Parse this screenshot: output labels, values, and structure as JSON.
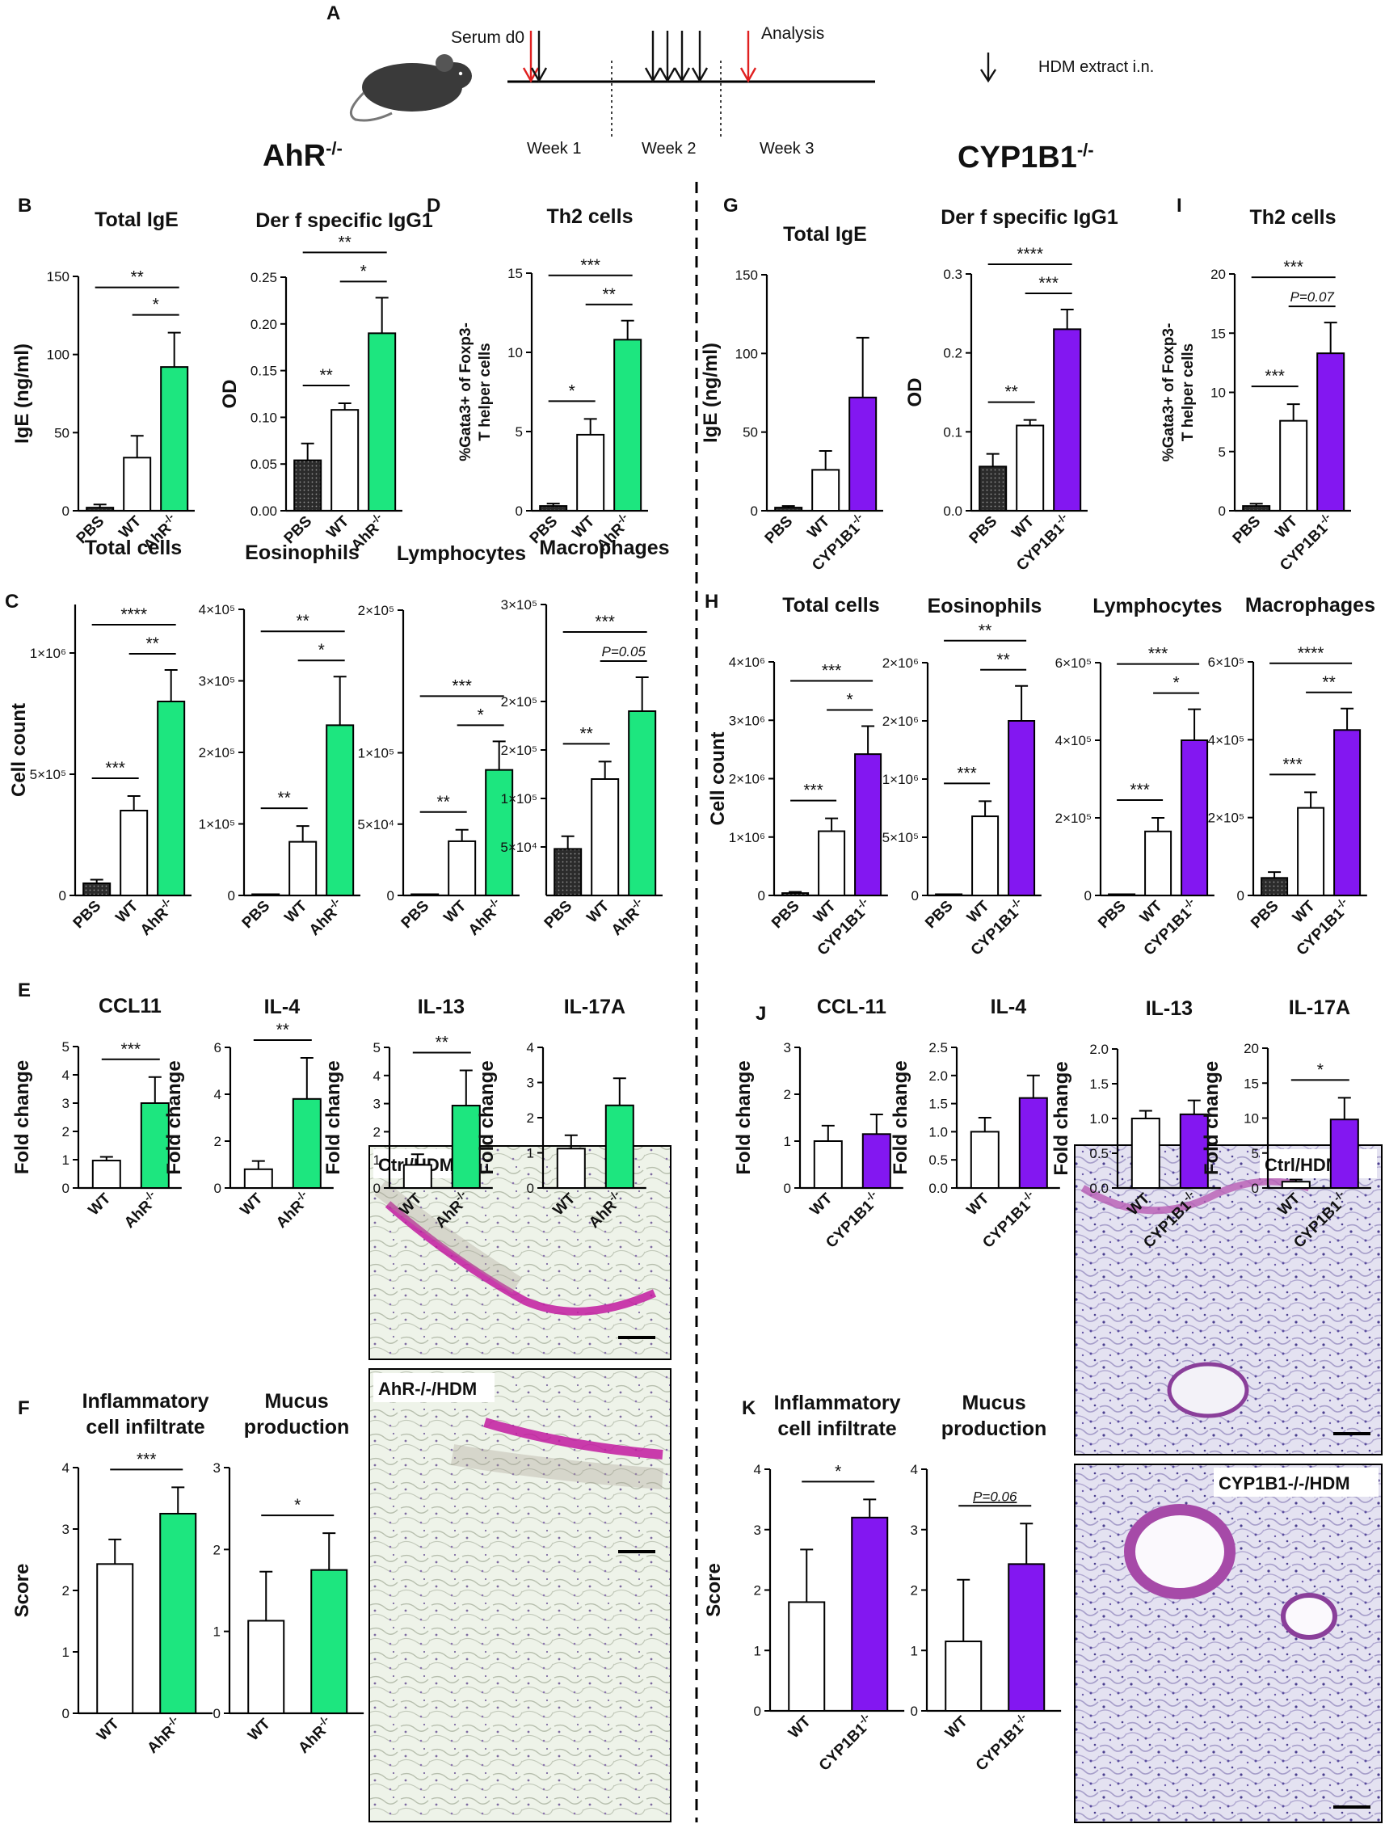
{
  "colors": {
    "green": "#1de67f",
    "purple": "#8317f1",
    "pbs": "#2b2b2b",
    "wt": "#ffffff",
    "line": "#000000"
  },
  "timeline": {
    "letter": "A",
    "serum": "Serum d0",
    "analysis": "Analysis",
    "weeks": [
      "Week 1",
      "Week 2",
      "Week 3"
    ],
    "legend": "HDM extract i.n."
  },
  "headers": {
    "left_base": "AhR",
    "left_sup": "-/-",
    "right_base": "CYP1B1",
    "right_sup": "-/-"
  },
  "histology": {
    "left": [
      "Ctrl/HDM",
      "AhR-/-/HDM"
    ],
    "right": [
      "Ctrl/HDM",
      "CYP1B1-/-/HDM"
    ]
  },
  "chart_data": [
    {
      "id": "B1",
      "letter": "B",
      "type": "bar",
      "title": "Total IgE",
      "ylabel": "IgE (ng/ml)",
      "ylim": [
        0,
        150
      ],
      "ticks": [
        "0",
        "50",
        "100",
        "150"
      ],
      "categories": [
        "PBS",
        "WT",
        "AhR-/-"
      ],
      "values": [
        2,
        34,
        92
      ],
      "errors": [
        2,
        14,
        22
      ],
      "sig": [
        {
          "from": 0,
          "to": 2,
          "label": "**"
        },
        {
          "from": 1,
          "to": 2,
          "label": "*"
        }
      ]
    },
    {
      "id": "B2",
      "type": "bar",
      "title": "Der f specific IgG1",
      "ylabel": "OD",
      "ylim": [
        0,
        0.25
      ],
      "ticks": [
        "0.00",
        "0.05",
        "0.10",
        "0.15",
        "0.20",
        "0.25"
      ],
      "categories": [
        "PBS",
        "WT",
        "AhR-/-"
      ],
      "values": [
        0.054,
        0.108,
        0.19
      ],
      "errors": [
        0.018,
        0.007,
        0.038
      ],
      "sig": [
        {
          "from": 0,
          "to": 1,
          "label": "**"
        },
        {
          "from": 0,
          "to": 2,
          "label": "**"
        },
        {
          "from": 1,
          "to": 2,
          "label": "*"
        }
      ]
    },
    {
      "id": "D",
      "letter": "D",
      "type": "bar",
      "title": "Th2 cells",
      "ylabel": "%Gata3+ of Foxp3- T helper cells",
      "ylim": [
        0,
        15
      ],
      "ticks": [
        "0",
        "5",
        "10",
        "15"
      ],
      "categories": [
        "PBS",
        "WT",
        "AhR-/-"
      ],
      "values": [
        0.3,
        4.8,
        10.8
      ],
      "errors": [
        0.15,
        1.0,
        1.2
      ],
      "sig": [
        {
          "from": 0,
          "to": 1,
          "label": "*"
        },
        {
          "from": 0,
          "to": 2,
          "label": "***"
        },
        {
          "from": 1,
          "to": 2,
          "label": "**"
        }
      ]
    },
    {
      "id": "G1",
      "letter": "G",
      "type": "bar",
      "title": "Total  IgE",
      "ylabel": "IgE (ng/ml)",
      "ylim": [
        0,
        150
      ],
      "ticks": [
        "0",
        "50",
        "100",
        "150"
      ],
      "categories": [
        "PBS",
        "WT",
        "CYP1B1-/-"
      ],
      "values": [
        2,
        26,
        72
      ],
      "errors": [
        1,
        12,
        38
      ],
      "sig": []
    },
    {
      "id": "G2",
      "type": "bar",
      "title": "Der f specific IgG1",
      "ylabel": "OD",
      "ylim": [
        0,
        0.3
      ],
      "ticks": [
        "0.0",
        "0.1",
        "0.2",
        "0.3"
      ],
      "categories": [
        "PBS",
        "WT",
        "CYP1B1-/-"
      ],
      "values": [
        0.056,
        0.108,
        0.23
      ],
      "errors": [
        0.016,
        0.007,
        0.025
      ],
      "sig": [
        {
          "from": 0,
          "to": 1,
          "label": "**"
        },
        {
          "from": 1,
          "to": 2,
          "label": "***"
        },
        {
          "from": 0,
          "to": 2,
          "label": "****"
        }
      ]
    },
    {
      "id": "I",
      "letter": "I",
      "type": "bar",
      "title": "Th2 cells",
      "ylabel": "%Gata3+ of Foxp3- T helper cells",
      "ylim": [
        0,
        20
      ],
      "ticks": [
        "0",
        "5",
        "10",
        "15",
        "20"
      ],
      "categories": [
        "PBS",
        "WT",
        "CYP1B1-/-"
      ],
      "values": [
        0.4,
        7.6,
        13.3
      ],
      "errors": [
        0.2,
        1.4,
        2.6
      ],
      "sig": [
        {
          "from": 0,
          "to": 1,
          "label": "***"
        },
        {
          "from": 0,
          "to": 2,
          "label": "***"
        },
        {
          "from": 1,
          "to": 2,
          "label": "P=0.07",
          "italic": true
        }
      ]
    },
    {
      "id": "C1",
      "letter": "C",
      "type": "bar",
      "title": "Total cells",
      "ylabel": "Cell count",
      "ylim": [
        0,
        1200000
      ],
      "ticks": [
        "0",
        "5×10⁵",
        "1×10⁶"
      ],
      "tickvals": [
        0,
        500000,
        1000000
      ],
      "categories": [
        "PBS",
        "WT",
        "AhR-/-"
      ],
      "values": [
        50000,
        350000,
        800000
      ],
      "errors": [
        15000,
        60000,
        130000
      ],
      "sig": [
        {
          "from": 0,
          "to": 1,
          "label": "***"
        },
        {
          "from": 0,
          "to": 2,
          "label": "****"
        },
        {
          "from": 1,
          "to": 2,
          "label": "**"
        }
      ]
    },
    {
      "id": "C2",
      "type": "bar",
      "title": "Eosinophils",
      "ylabel": "",
      "ylim": [
        0,
        400000
      ],
      "ticks": [
        "0",
        "1×10⁵",
        "2×10⁵",
        "3×10⁵",
        "4×10⁵"
      ],
      "categories": [
        "PBS",
        "WT",
        "AhR-/-"
      ],
      "values": [
        500,
        75000,
        238000
      ],
      "errors": [
        300,
        22000,
        68000
      ],
      "sig": [
        {
          "from": 0,
          "to": 1,
          "label": "**"
        },
        {
          "from": 0,
          "to": 2,
          "label": "**"
        },
        {
          "from": 1,
          "to": 2,
          "label": "*"
        }
      ]
    },
    {
      "id": "C3",
      "type": "bar",
      "title": "Lymphocytes",
      "ylabel": "",
      "ylim": [
        0,
        200000
      ],
      "ticks": [
        "0",
        "5×10⁴",
        "1×10⁵",
        "2×10⁵"
      ],
      "tickvals": [
        0,
        50000,
        100000,
        200000
      ],
      "categories": [
        "PBS",
        "WT",
        "AhR-/-"
      ],
      "values": [
        500,
        38000,
        88000
      ],
      "errors": [
        300,
        8000,
        20000
      ],
      "sig": [
        {
          "from": 0,
          "to": 1,
          "label": "**"
        },
        {
          "from": 0,
          "to": 2,
          "label": "***"
        },
        {
          "from": 1,
          "to": 2,
          "label": "*"
        }
      ]
    },
    {
      "id": "C4",
      "type": "bar",
      "title": "Macrophages",
      "ylabel": "",
      "ylim": [
        0,
        300000
      ],
      "ticks": [
        "5×10⁴",
        "1×10⁵",
        "2×10⁵",
        "2×10⁵",
        "3×10⁵"
      ],
      "tickvals": [
        50000,
        100000,
        150000,
        200000,
        300000
      ],
      "categories": [
        "PBS",
        "WT",
        "AhR-/-"
      ],
      "values": [
        48000,
        120000,
        190000
      ],
      "errors": [
        13000,
        18000,
        35000
      ],
      "sig": [
        {
          "from": 0,
          "to": 1,
          "label": "**"
        },
        {
          "from": 0,
          "to": 2,
          "label": "***"
        },
        {
          "from": 1,
          "to": 2,
          "label": "P=0.05",
          "italic": true
        }
      ]
    },
    {
      "id": "H1",
      "letter": "H",
      "type": "bar",
      "title": "Total cells",
      "ylabel": "Cell count",
      "ylim": [
        0,
        4000000
      ],
      "ticks": [
        "0",
        "1×10⁶",
        "2×10⁶",
        "3×10⁶",
        "4×10⁶"
      ],
      "categories": [
        "PBS",
        "WT",
        "CYP1B1-/-"
      ],
      "values": [
        40000,
        1100000,
        2420000
      ],
      "errors": [
        20000,
        220000,
        480000
      ],
      "sig": [
        {
          "from": 0,
          "to": 1,
          "label": "***"
        },
        {
          "from": 0,
          "to": 2,
          "label": "***"
        },
        {
          "from": 1,
          "to": 2,
          "label": "*"
        }
      ]
    },
    {
      "id": "H2",
      "type": "bar",
      "title": "Eosinophils",
      "ylabel": "",
      "ylim": [
        0,
        2000000
      ],
      "ticks": [
        "0",
        "5×10⁵",
        "1×10⁶",
        "2×10⁶",
        "2×10⁶"
      ],
      "tickvals": [
        0,
        500000,
        1000000,
        1500000,
        2000000
      ],
      "categories": [
        "PBS",
        "WT",
        "CYP1B1-/-"
      ],
      "values": [
        2000,
        680000,
        1500000
      ],
      "errors": [
        1000,
        130000,
        300000
      ],
      "sig": [
        {
          "from": 0,
          "to": 1,
          "label": "***"
        },
        {
          "from": 0,
          "to": 2,
          "label": "**"
        },
        {
          "from": 1,
          "to": 2,
          "label": "**"
        }
      ]
    },
    {
      "id": "H3",
      "type": "bar",
      "title": "Lymphocytes",
      "ylabel": "",
      "ylim": [
        0,
        600000
      ],
      "ticks": [
        "0",
        "2×10⁵",
        "4×10⁵",
        "6×10⁵"
      ],
      "categories": [
        "PBS",
        "WT",
        "CYP1B1-/-"
      ],
      "values": [
        1000,
        165000,
        400000
      ],
      "errors": [
        500,
        35000,
        80000
      ],
      "sig": [
        {
          "from": 0,
          "to": 1,
          "label": "***"
        },
        {
          "from": 0,
          "to": 2,
          "label": "***"
        },
        {
          "from": 1,
          "to": 2,
          "label": "*"
        }
      ]
    },
    {
      "id": "H4",
      "type": "bar",
      "title": "Macrophages",
      "ylabel": "",
      "ylim": [
        0,
        600000
      ],
      "ticks": [
        "0",
        "2×10⁵",
        "4×10⁵",
        "6×10⁵"
      ],
      "categories": [
        "PBS",
        "WT",
        "CYP1B1-/-"
      ],
      "values": [
        45000,
        225000,
        425000
      ],
      "errors": [
        15000,
        40000,
        55000
      ],
      "sig": [
        {
          "from": 0,
          "to": 1,
          "label": "***"
        },
        {
          "from": 0,
          "to": 2,
          "label": "****"
        },
        {
          "from": 1,
          "to": 2,
          "label": "**"
        }
      ]
    },
    {
      "id": "E1",
      "letter": "E",
      "type": "bar",
      "title": "CCL11",
      "ylabel": "Fold change",
      "ylim": [
        0,
        5
      ],
      "ticks": [
        "0",
        "1",
        "2",
        "3",
        "4",
        "5"
      ],
      "categories": [
        "WT",
        "AhR-/-"
      ],
      "values": [
        0.97,
        3.0
      ],
      "errors": [
        0.13,
        0.92
      ],
      "sig": [
        {
          "from": 0,
          "to": 1,
          "label": "***"
        }
      ]
    },
    {
      "id": "E2",
      "type": "bar",
      "title": "IL-4",
      "ylabel": "Fold change",
      "ylim": [
        0,
        6
      ],
      "ticks": [
        "0",
        "2",
        "4",
        "6"
      ],
      "categories": [
        "WT",
        "AhR-/-"
      ],
      "values": [
        0.8,
        3.8
      ],
      "errors": [
        0.35,
        1.75
      ],
      "sig": [
        {
          "from": 0,
          "to": 1,
          "label": "**"
        }
      ]
    },
    {
      "id": "E3",
      "type": "bar",
      "title": "IL-13",
      "ylabel": "Fold change",
      "ylim": [
        0,
        5
      ],
      "ticks": [
        "0",
        "1",
        "2",
        "3",
        "4",
        "5"
      ],
      "categories": [
        "WT",
        "AhR-/-"
      ],
      "values": [
        0.82,
        2.93
      ],
      "errors": [
        0.38,
        1.25
      ],
      "sig": [
        {
          "from": 0,
          "to": 1,
          "label": "**"
        }
      ]
    },
    {
      "id": "E4",
      "type": "bar",
      "title": "IL-17A",
      "ylabel": "Fold change",
      "ylim": [
        0,
        4
      ],
      "ticks": [
        "0",
        "1",
        "2",
        "3",
        "4"
      ],
      "categories": [
        "WT",
        "AhR-/-"
      ],
      "values": [
        1.12,
        2.35
      ],
      "errors": [
        0.38,
        0.77
      ],
      "sig": []
    },
    {
      "id": "J1",
      "letter": "J",
      "type": "bar",
      "title": "CCL-11",
      "ylabel": "Fold change",
      "ylim": [
        0,
        3
      ],
      "ticks": [
        "0",
        "1",
        "2",
        "3"
      ],
      "categories": [
        "WT",
        "CYP1B1-/-"
      ],
      "values": [
        1.0,
        1.15
      ],
      "errors": [
        0.33,
        0.42
      ],
      "sig": []
    },
    {
      "id": "J2",
      "type": "bar",
      "title": "IL-4",
      "ylabel": "Fold change",
      "ylim": [
        0,
        2.5
      ],
      "ticks": [
        "0.0",
        "0.5",
        "1.0",
        "1.5",
        "2.0",
        "2.5"
      ],
      "categories": [
        "WT",
        "CYP1B1-/-"
      ],
      "values": [
        1.0,
        1.6
      ],
      "errors": [
        0.25,
        0.4
      ],
      "sig": []
    },
    {
      "id": "J3",
      "type": "bar",
      "title": "IL-13",
      "ylabel": "Fold change",
      "ylim": [
        0,
        2.0
      ],
      "ticks": [
        "0.0",
        "0.5",
        "1.0",
        "1.5",
        "2.0"
      ],
      "categories": [
        "WT",
        "CYP1B1-/-"
      ],
      "values": [
        1.0,
        1.06
      ],
      "errors": [
        0.11,
        0.2
      ],
      "sig": []
    },
    {
      "id": "J4",
      "type": "bar",
      "title": "IL-17A",
      "ylabel": "Fold change",
      "ylim": [
        0,
        20
      ],
      "ticks": [
        "0",
        "5",
        "10",
        "15",
        "20"
      ],
      "categories": [
        "WT",
        "CYP1B1-/-"
      ],
      "values": [
        0.9,
        9.8
      ],
      "errors": [
        0.3,
        3.1
      ],
      "sig": [
        {
          "from": 0,
          "to": 1,
          "label": "*"
        }
      ]
    },
    {
      "id": "F1",
      "letter": "F",
      "type": "bar",
      "title": "Inflammatory cell infiltrate",
      "title_lines": [
        "Inflammatory",
        "cell infiltrate"
      ],
      "ylabel": "Score",
      "ylim": [
        0,
        4
      ],
      "ticks": [
        "0",
        "1",
        "2",
        "3",
        "4"
      ],
      "categories": [
        "WT",
        "AhR-/-"
      ],
      "values": [
        2.43,
        3.25
      ],
      "errors": [
        0.4,
        0.43
      ],
      "sig": [
        {
          "from": 0,
          "to": 1,
          "label": "***"
        }
      ]
    },
    {
      "id": "F2",
      "type": "bar",
      "title": "Mucus production",
      "title_lines": [
        "Mucus",
        "production"
      ],
      "ylabel": "",
      "ylim": [
        0,
        3
      ],
      "ticks": [
        "0",
        "1",
        "2",
        "3"
      ],
      "categories": [
        "WT",
        "AhR-/-"
      ],
      "values": [
        1.13,
        1.75
      ],
      "errors": [
        0.6,
        0.45
      ],
      "sig": [
        {
          "from": 0,
          "to": 1,
          "label": "*"
        }
      ]
    },
    {
      "id": "K1",
      "letter": "K",
      "type": "bar",
      "title": "Inflammatory cell infiltrate",
      "title_lines": [
        "Inflammatory",
        "cell infiltrate"
      ],
      "ylabel": "Score",
      "ylim": [
        0,
        4
      ],
      "ticks": [
        "0",
        "1",
        "2",
        "3",
        "4"
      ],
      "categories": [
        "WT",
        "CYP1B1-/-"
      ],
      "values": [
        1.8,
        3.2
      ],
      "errors": [
        0.87,
        0.3
      ],
      "sig": [
        {
          "from": 0,
          "to": 1,
          "label": "*"
        }
      ]
    },
    {
      "id": "K2",
      "type": "bar",
      "title": "Mucus production",
      "title_lines": [
        "Mucus",
        "production"
      ],
      "ylabel": "",
      "ylim": [
        0,
        4
      ],
      "ticks": [
        "0",
        "1",
        "2",
        "3",
        "4"
      ],
      "categories": [
        "WT",
        "CYP1B1-/-"
      ],
      "values": [
        1.15,
        2.43
      ],
      "errors": [
        1.02,
        0.67
      ],
      "sig": [
        {
          "from": 0,
          "to": 1,
          "label": "P=0.06",
          "italic": true,
          "underline": true
        }
      ]
    }
  ]
}
